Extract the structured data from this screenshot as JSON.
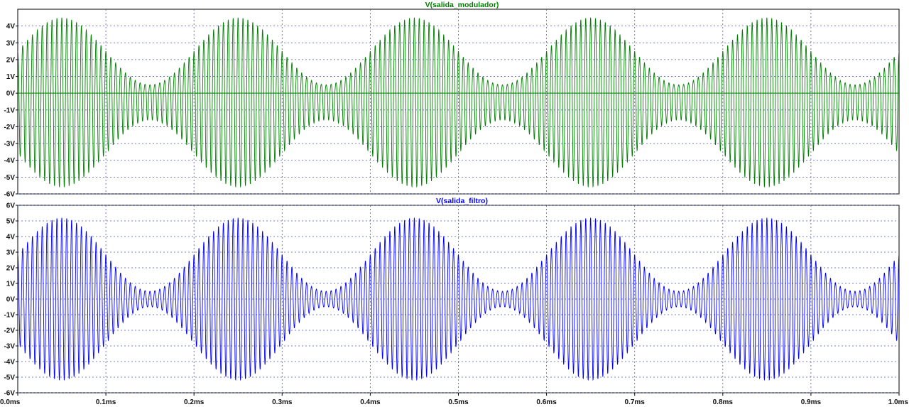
{
  "chart_data": [
    {
      "type": "line",
      "title": "V(salida_modulador)",
      "xlabel": "",
      "ylabel": "",
      "x_tick_labels": [
        "0.0ms",
        "0.1ms",
        "0.2ms",
        "0.3ms",
        "0.4ms",
        "0.5ms",
        "0.6ms",
        "0.7ms",
        "0.8ms",
        "0.9ms",
        "1.0ms"
      ],
      "y_tick_labels": [
        "4V",
        "3V",
        "2V",
        "1V",
        "0V",
        "-1V",
        "-2V",
        "-3V",
        "-4V",
        "-5V",
        "-6V"
      ],
      "xlim": [
        0,
        1.0
      ],
      "ylim": [
        -6,
        5
      ],
      "grid": true,
      "color": "#008000",
      "series": [
        {
          "carrier_cycles_per_ms": 180,
          "envelope_period_ms": 0.2,
          "envelope_peak_times_ms": [
            0.05,
            0.25,
            0.45,
            0.65,
            0.85
          ],
          "envelope_null_times_ms": [
            0.15,
            0.35,
            0.55,
            0.75,
            0.95
          ],
          "upper_envelope_max_V": 4.5,
          "upper_envelope_min_V": 0.5,
          "lower_envelope_max_V": -5.6,
          "lower_envelope_min_V": -1.6
        }
      ]
    },
    {
      "type": "line",
      "title": "V(salida_filtro)",
      "xlabel": "",
      "ylabel": "",
      "x_tick_labels": [
        "0.0ms",
        "0.1ms",
        "0.2ms",
        "0.3ms",
        "0.4ms",
        "0.5ms",
        "0.6ms",
        "0.7ms",
        "0.8ms",
        "0.9ms",
        "1.0ms"
      ],
      "y_tick_labels": [
        "6V",
        "5V",
        "4V",
        "3V",
        "2V",
        "1V",
        "0V",
        "-1V",
        "-2V",
        "-3V",
        "-4V",
        "-5V",
        "-6V"
      ],
      "xlim": [
        0,
        1.0
      ],
      "ylim": [
        -6,
        6
      ],
      "grid": true,
      "color": "#0000ff",
      "series": [
        {
          "carrier_cycles_per_ms": 180,
          "envelope_period_ms": 0.2,
          "envelope_peak_times_ms": [
            0.05,
            0.25,
            0.45,
            0.65,
            0.85
          ],
          "envelope_null_times_ms": [
            0.15,
            0.35,
            0.55,
            0.75,
            0.95
          ],
          "envelope_max_V": 5.2,
          "envelope_min_V": 0.5
        }
      ]
    }
  ]
}
